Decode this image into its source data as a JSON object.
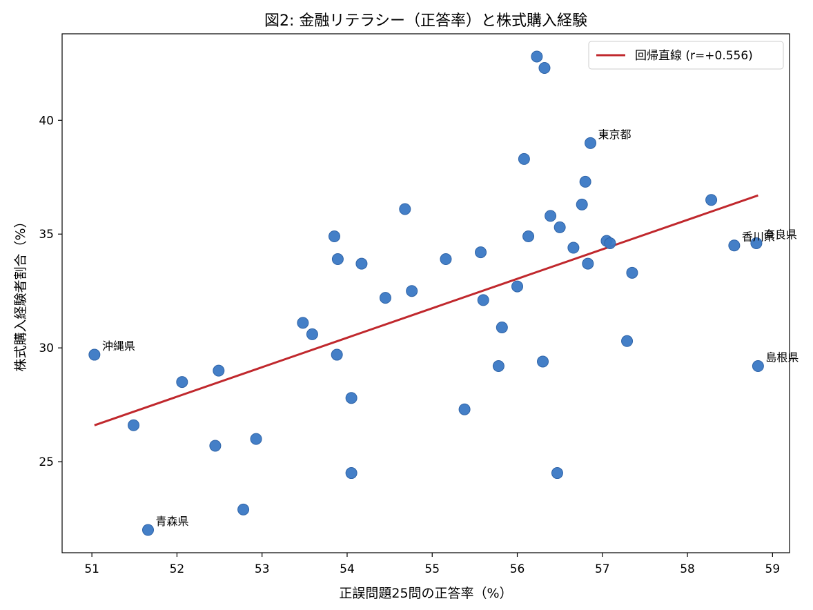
{
  "chart_data": {
    "type": "scatter",
    "title": "図2: 金融リテラシー（正答率）と株式購入経験",
    "xlabel": "正誤問題25問の正答率（%）",
    "ylabel": "株式購入経験者割合（%）",
    "xlim": [
      50.65,
      59.2
    ],
    "ylim": [
      21.0,
      43.8
    ],
    "xticks": [
      51,
      52,
      53,
      54,
      55,
      56,
      57,
      58,
      59
    ],
    "yticks": [
      25,
      30,
      35,
      40
    ],
    "grid": false,
    "legend_position": "top-right",
    "colors": {
      "points": "#3a78c4",
      "line": "#c0282d"
    },
    "series": [
      {
        "type": "scatter",
        "points": [
          {
            "x": 51.03,
            "y": 29.7,
            "label": "沖縄県"
          },
          {
            "x": 51.66,
            "y": 22.0,
            "label": "青森県"
          },
          {
            "x": 51.49,
            "y": 26.6
          },
          {
            "x": 52.06,
            "y": 28.5
          },
          {
            "x": 52.45,
            "y": 25.7
          },
          {
            "x": 52.49,
            "y": 29.0
          },
          {
            "x": 52.78,
            "y": 22.9
          },
          {
            "x": 52.93,
            "y": 26.0
          },
          {
            "x": 53.48,
            "y": 31.1
          },
          {
            "x": 53.59,
            "y": 30.6
          },
          {
            "x": 53.85,
            "y": 34.9
          },
          {
            "x": 53.89,
            "y": 33.9
          },
          {
            "x": 53.88,
            "y": 29.7
          },
          {
            "x": 54.05,
            "y": 27.8
          },
          {
            "x": 54.05,
            "y": 24.5
          },
          {
            "x": 54.17,
            "y": 33.7
          },
          {
            "x": 54.45,
            "y": 32.2
          },
          {
            "x": 54.68,
            "y": 36.1
          },
          {
            "x": 54.76,
            "y": 32.5
          },
          {
            "x": 55.16,
            "y": 33.9
          },
          {
            "x": 55.38,
            "y": 27.3
          },
          {
            "x": 55.57,
            "y": 34.2
          },
          {
            "x": 55.6,
            "y": 32.1
          },
          {
            "x": 55.78,
            "y": 29.2
          },
          {
            "x": 55.82,
            "y": 30.9
          },
          {
            "x": 56.0,
            "y": 32.7
          },
          {
            "x": 56.08,
            "y": 38.3
          },
          {
            "x": 56.13,
            "y": 34.9
          },
          {
            "x": 56.23,
            "y": 42.8
          },
          {
            "x": 56.3,
            "y": 29.4
          },
          {
            "x": 56.32,
            "y": 42.3
          },
          {
            "x": 56.39,
            "y": 35.8
          },
          {
            "x": 56.47,
            "y": 24.5
          },
          {
            "x": 56.5,
            "y": 35.3
          },
          {
            "x": 56.66,
            "y": 34.4
          },
          {
            "x": 56.76,
            "y": 36.3
          },
          {
            "x": 56.8,
            "y": 37.3
          },
          {
            "x": 56.83,
            "y": 33.7
          },
          {
            "x": 56.86,
            "y": 39.0,
            "label": "東京都"
          },
          {
            "x": 57.05,
            "y": 34.7
          },
          {
            "x": 57.09,
            "y": 34.6
          },
          {
            "x": 57.29,
            "y": 30.3
          },
          {
            "x": 57.35,
            "y": 33.3
          },
          {
            "x": 58.28,
            "y": 36.5
          },
          {
            "x": 58.55,
            "y": 34.5,
            "label": "香川県"
          },
          {
            "x": 58.81,
            "y": 34.6,
            "label": "奈良県"
          },
          {
            "x": 58.83,
            "y": 29.2,
            "label": "島根県"
          }
        ]
      },
      {
        "type": "line",
        "name": "回帰直線 (r=+0.556)",
        "x": [
          51.03,
          58.83
        ],
        "y": [
          26.6,
          36.7
        ]
      }
    ]
  }
}
